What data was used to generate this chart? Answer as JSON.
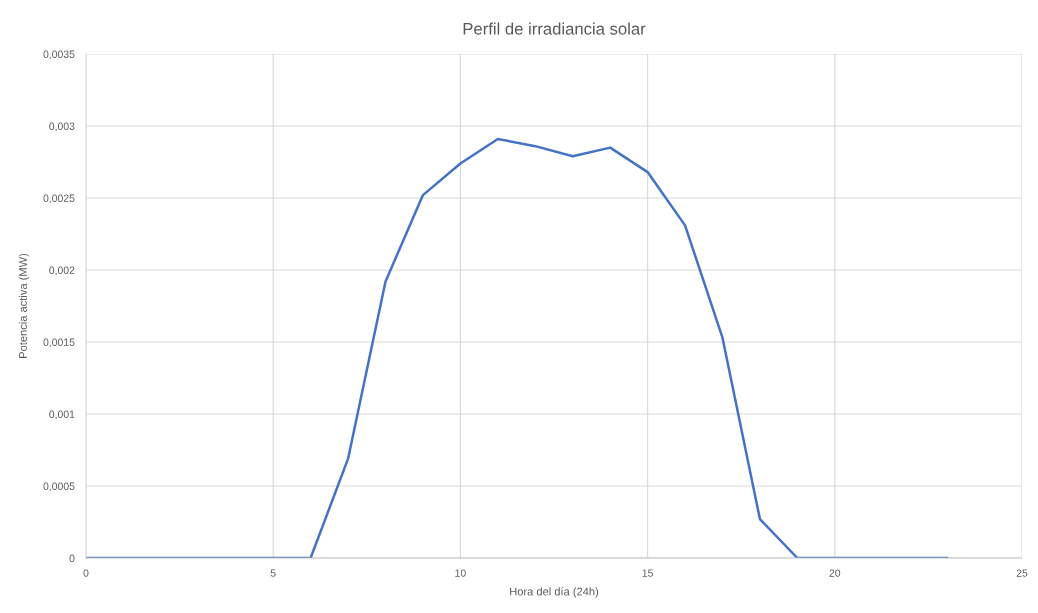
{
  "chart_data": {
    "type": "line",
    "title": "Perfil de irradiancia solar",
    "xlabel": "Hora del día (24h)",
    "ylabel": "Potencia activa (MW)",
    "x": [
      0,
      1,
      2,
      3,
      4,
      5,
      6,
      7,
      8,
      9,
      10,
      11,
      12,
      13,
      14,
      15,
      16,
      17,
      18,
      19,
      20,
      21,
      22,
      23
    ],
    "series": [
      {
        "color": "#4472c4",
        "values": [
          0,
          0,
          0,
          0,
          0,
          0,
          0,
          0.00069,
          0.00192,
          0.00252,
          0.00274,
          0.00291,
          0.00286,
          0.00279,
          0.00285,
          0.00268,
          0.00231,
          0.00153,
          0.00027,
          0,
          0,
          0,
          0,
          0
        ]
      }
    ],
    "xlim": [
      0,
      25
    ],
    "xticks": [
      0,
      5,
      10,
      15,
      20,
      25
    ],
    "ylim": [
      0,
      0.0035
    ],
    "yticks": [
      0,
      {
        "value": 0.0005,
        "label": "0,0005"
      },
      {
        "value": 0.001,
        "label": "0,001"
      },
      {
        "value": 0.0015,
        "label": "0,0015"
      },
      {
        "value": 0.002,
        "label": "0,002"
      },
      {
        "value": 0.0025,
        "label": "0,0025"
      },
      {
        "value": 0.003,
        "label": "0,003"
      },
      {
        "value": 0.0035,
        "label": "0,0035"
      }
    ],
    "grid": true,
    "marker": "none",
    "line_style": "solid"
  }
}
